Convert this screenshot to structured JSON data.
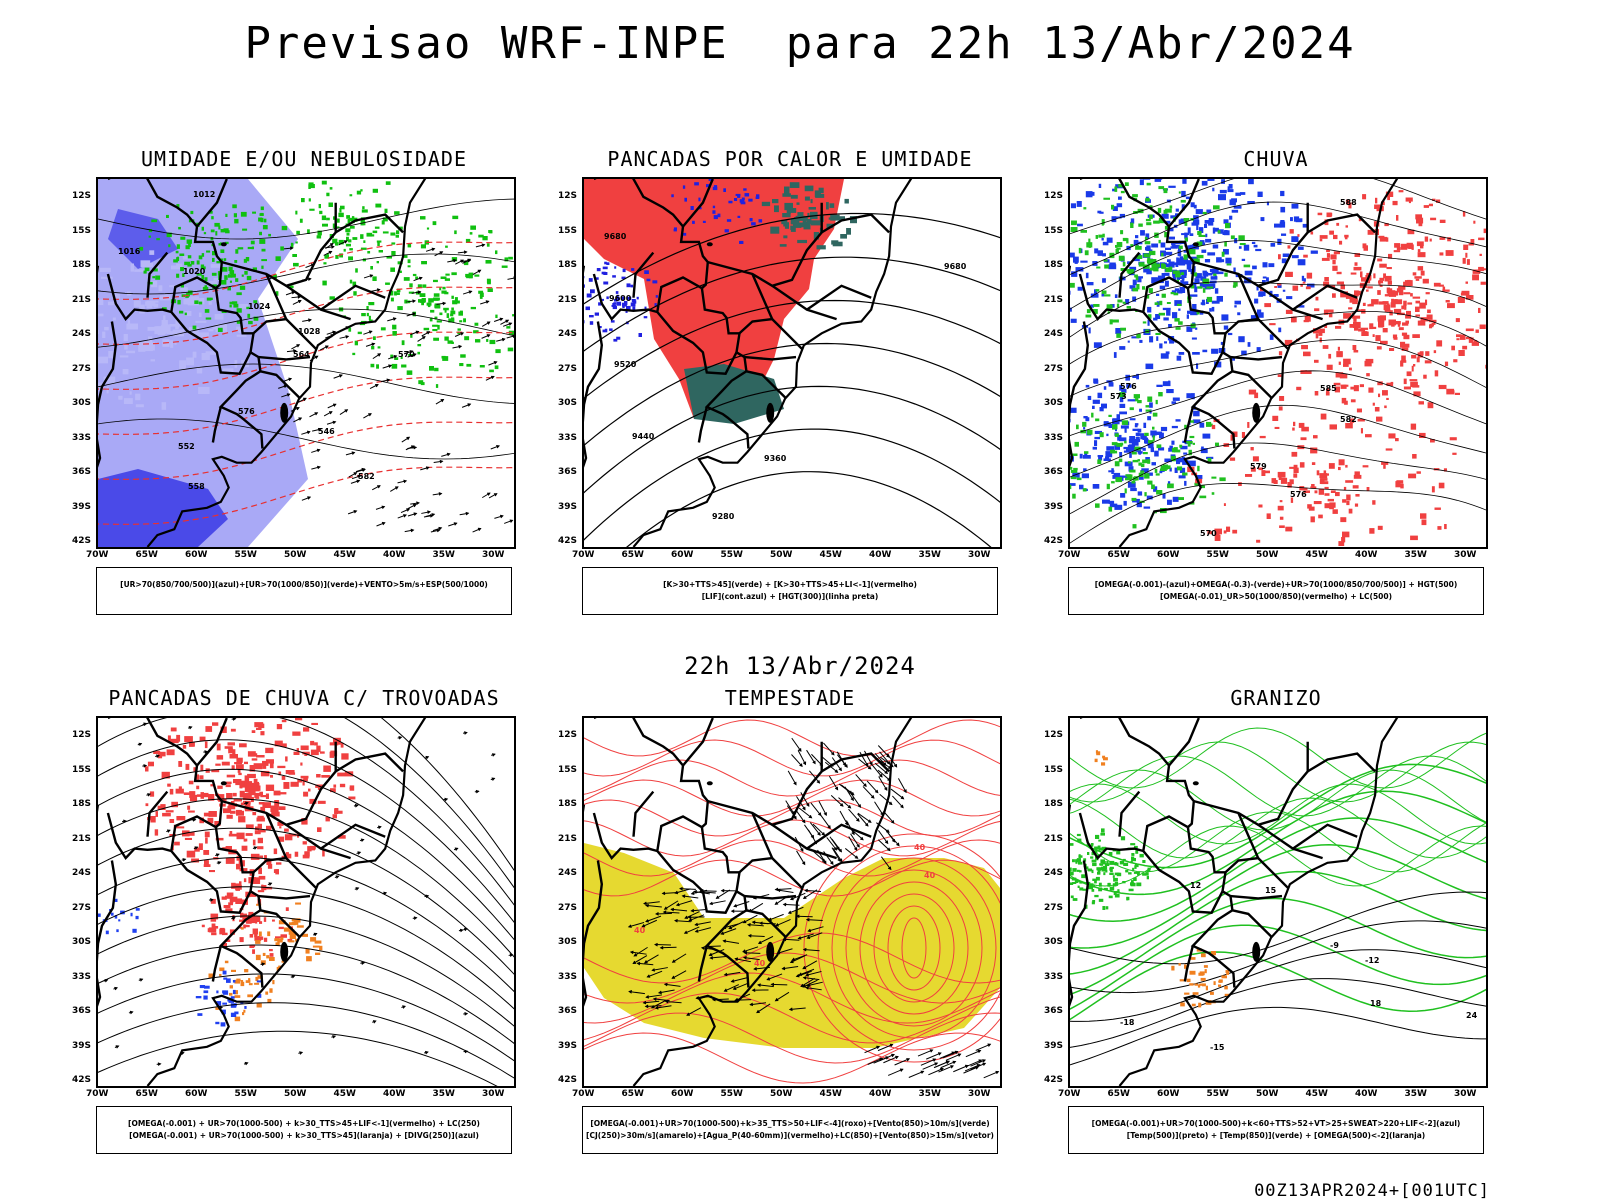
{
  "title": "Previsao WRF-INPE  para 22h 13/Abr/2024",
  "mid_title": "22h 13/Abr/2024",
  "footer": "00Z13APR2024+[001UTC]",
  "lat_labels": [
    "12S",
    "15S",
    "18S",
    "21S",
    "24S",
    "27S",
    "30S",
    "33S",
    "36S",
    "39S",
    "42S"
  ],
  "lon_labels": [
    "70W",
    "65W",
    "60W",
    "55W",
    "50W",
    "45W",
    "40W",
    "35W",
    "30W"
  ],
  "panels": [
    {
      "title": "UMIDADE E/OU NEBULOSIDADE",
      "legend_lines": [
        "[UR>70(850/700/500)](azul)+[UR>70(1000/850)](verde)+VENTO>5m/s+ESP(500/1000)"
      ],
      "colors": {
        "fill": "#9a9af5",
        "fill_dark": "#4a4ae8",
        "contour": "#10c010",
        "dash": "#e83030"
      },
      "contour_labels": [
        "1012",
        "1016",
        "1020",
        "1024",
        "1028",
        "564",
        "570",
        "576",
        "582",
        "546",
        "552",
        "558"
      ]
    },
    {
      "title": "PANCADAS POR CALOR E UMIDADE",
      "legend_lines": [
        "[K>30+TTS>45](verde) + [K>30+TTS>45+LI<-1](vermelho)",
        "[LIF](cont.azul) + [HGT(300)](linha preta)"
      ],
      "colors": {
        "fill": "#f04040",
        "fill_dark": "#2f6660",
        "contour": "#2020e0",
        "line": "#000000"
      },
      "contour_labels": [
        "9680",
        "9600",
        "9520",
        "9440",
        "9360",
        "9280",
        "9680"
      ]
    },
    {
      "title": "CHUVA",
      "legend_lines": [
        "[OMEGA(-0.001)-(azul)+OMEGA(-0.3)-(verde)+UR>70(1000/850/700/500)] + HGT(500)",
        "[OMEGA(-0.01)_UR>50(1000/850)(vermelho) + LC(500)"
      ],
      "colors": {
        "blue": "#1a3ae8",
        "green": "#20c020",
        "red": "#f04040"
      },
      "contour_labels": [
        "588",
        "585",
        "582",
        "579",
        "576",
        "573",
        "570",
        "576"
      ]
    },
    {
      "title": "PANCADAS DE CHUVA C/ TROVOADAS",
      "legend_lines": [
        "[OMEGA(-0.001) + UR>70(1000-500) + k>30_TTS>45+LIF<-1](vermelho) + LC(250)",
        "[OMEGA(-0.001) + UR>70(1000-500) + k>30_TTS>45](laranja) + [DIVG(250)](azul)"
      ],
      "colors": {
        "red": "#f04040",
        "orange": "#f08020",
        "blue": "#2040f0"
      },
      "contour_labels": []
    },
    {
      "title": "TEMPESTADE",
      "legend_lines": [
        "[OMEGA(-0.001)+UR>70(1000-500)+k>35_TTS>50+LIF<-4](roxo)+[Vento(850)>10m/s](verde)",
        "[CJ(250)>30m/s](amarelo)+[Agua_P(40-60mm)](vermelho)+LC(850)+[Vento(850)>15m/s](vetor)"
      ],
      "colors": {
        "yellow": "#e6d930",
        "red": "#f04040"
      },
      "contour_labels": [
        "40",
        "40",
        "40",
        "40"
      ]
    },
    {
      "title": "GRANIZO",
      "legend_lines": [
        "[OMEGA(-0.001)+UR>70(1000-500)+k<60+TTS>52+VT>25+SWEAT>220+LIF<-2](azul)",
        "[Temp(500)](preto) + [Temp(850)](verde) + [OMEGA(500)<-2](laranja)"
      ],
      "colors": {
        "green": "#20c020",
        "orange": "#f08020"
      },
      "contour_labels": [
        "-9",
        "-12",
        "-15",
        "-18",
        "12",
        "15",
        "18",
        "24"
      ]
    }
  ]
}
